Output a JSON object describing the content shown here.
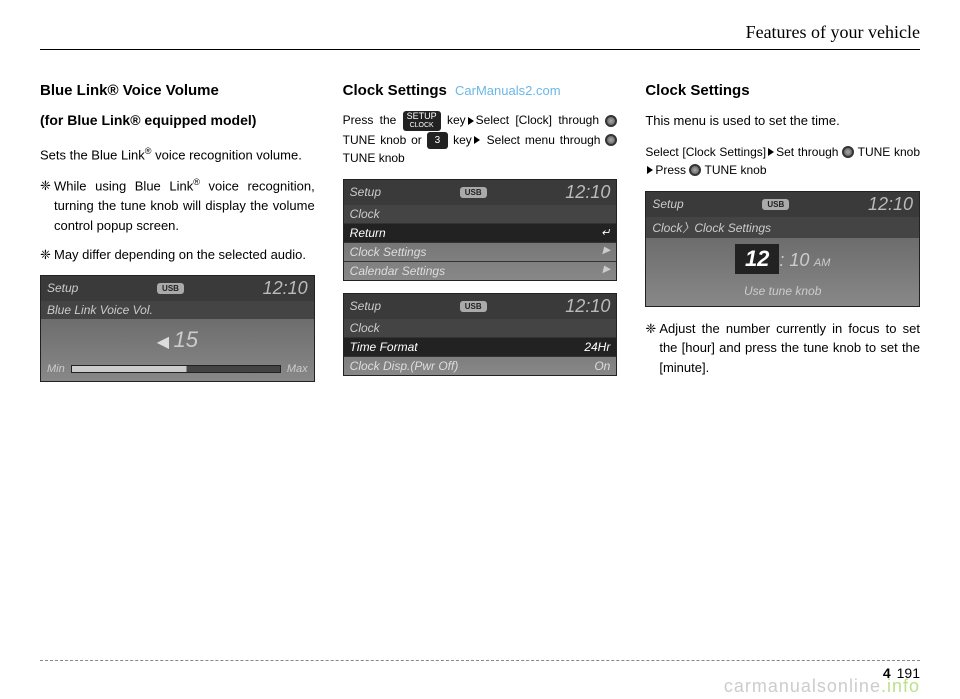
{
  "header": {
    "title": "Features of your vehicle"
  },
  "footer": {
    "section": "4",
    "page": "191",
    "watermark_main": "carmanualsonline",
    "watermark_suffix": ".info"
  },
  "watermark_top": "CarManuals2.com",
  "keys": {
    "setup_top": "SETUP",
    "setup_bottom": "CLOCK",
    "num3": "3",
    "tune": "TUNE"
  },
  "col1": {
    "title1": "Blue Link® Voice Volume",
    "title2": "(for Blue Link® equipped model)",
    "p1_a": "Sets the Blue Link",
    "p1_sup": "®",
    "p1_b": " voice recognition volume.",
    "b1_a": "While using Blue Link",
    "b1_sup": "®",
    "b1_b": " voice recognition, turning the tune knob will display the volume control popup screen.",
    "b2": "May differ depending on the selected audio.",
    "screen": {
      "setup": "Setup",
      "usb": "USB",
      "time": "12:10",
      "crumb": "Blue Link Voice Vol.",
      "vol_num": "15",
      "min": "Min",
      "max": "Max"
    }
  },
  "col2": {
    "title": "Clock Settings",
    "instr_a": "Press the ",
    "instr_b": " key",
    "instr_c": "Select [Clock] through ",
    "instr_d": " knob or ",
    "instr_e": " key",
    "instr_f": "Select menu through ",
    "instr_g": " knob",
    "screen1": {
      "setup": "Setup",
      "usb": "USB",
      "time": "12:10",
      "crumb": "Clock",
      "r1": "Return",
      "r2": "Clock Settings",
      "r3": "Calendar Settings"
    },
    "screen2": {
      "setup": "Setup",
      "usb": "USB",
      "time": "12:10",
      "crumb": "Clock",
      "r1": "Time Format",
      "r1v": "24Hr",
      "r2": "Clock Disp.(Pwr Off)",
      "r2v": "On"
    }
  },
  "col3": {
    "title": "Clock Settings",
    "p1": "This menu is used to set the time.",
    "instr_a": "Select [Clock Settings]",
    "instr_b": "Set through ",
    "instr_c": " knob",
    "instr_d": "Press ",
    "instr_e": " knob",
    "screen": {
      "setup": "Setup",
      "usb": "USB",
      "time": "12:10",
      "crumb": "Clock〉Clock Settings",
      "big_h": "12",
      "big_rest": ": 10",
      "ampm": "AM",
      "hint": "Use tune knob"
    },
    "b1": "Adjust the number currently in focus to set the [hour] and press the tune knob to set the [minute]."
  }
}
